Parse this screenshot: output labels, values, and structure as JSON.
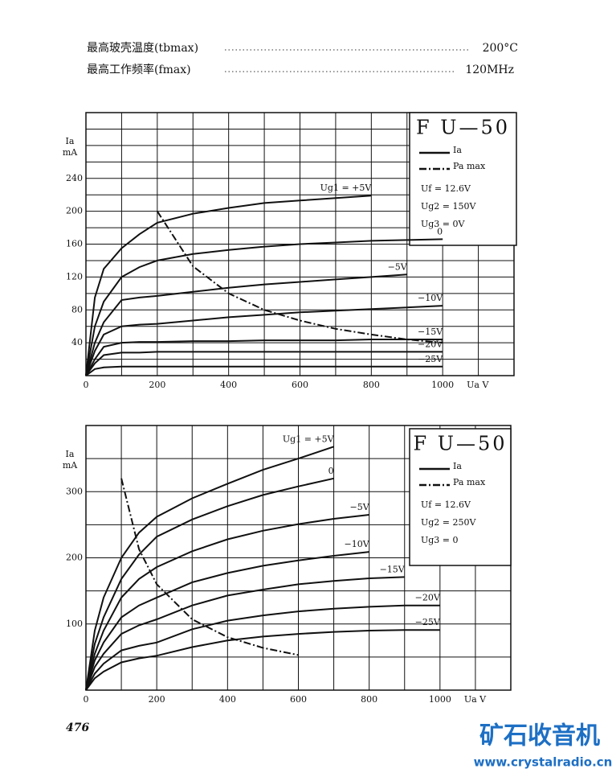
{
  "header": {
    "lines": [
      {
        "label": "最高玻壳温度(tbmax)",
        "value": "200°C"
      },
      {
        "label": "最高工作频率(fmax)",
        "value": "120MHz"
      }
    ]
  },
  "chart_data": [
    {
      "type": "line",
      "title": "F U—50",
      "y_label": [
        "Ia",
        "mA"
      ],
      "x_label": "Ua V",
      "legend": [
        {
          "label": "Ia",
          "style": "solid"
        },
        {
          "label": "Pa max",
          "style": "dashdot"
        }
      ],
      "conditions": [
        "Uf = 12.6V",
        "Ug2 = 150V",
        "Ug3 = 0V"
      ],
      "xlim": [
        0,
        1200
      ],
      "ylim": [
        0,
        320
      ],
      "xticks": [
        0,
        200,
        400,
        600,
        800,
        1000
      ],
      "yticks": [
        40,
        80,
        120,
        160,
        200,
        240
      ],
      "x_minor_ticks": [
        100,
        300,
        500,
        700,
        900,
        1100
      ],
      "y_minor_ticks": [
        20,
        60,
        100,
        140,
        180,
        220,
        260,
        280,
        300
      ],
      "grid": true,
      "x": [
        0,
        25,
        50,
        100,
        150,
        200,
        300,
        400,
        500,
        600,
        700,
        800,
        900,
        1000
      ],
      "series": [
        {
          "name": "Ug1 = +5V",
          "color": "#111111",
          "style": "solid",
          "values": [
            0,
            95,
            130,
            155,
            172,
            186,
            197,
            204,
            210,
            213,
            216,
            219,
            null,
            null
          ]
        },
        {
          "name": "0",
          "color": "#111111",
          "style": "solid",
          "values": [
            0,
            60,
            90,
            120,
            132,
            140,
            148,
            153,
            157,
            160,
            162,
            164,
            165,
            166
          ]
        },
        {
          "name": "−5V",
          "color": "#111111",
          "style": "solid",
          "values": [
            0,
            40,
            65,
            92,
            95,
            97,
            102,
            107,
            111,
            114,
            117,
            120,
            123,
            null
          ]
        },
        {
          "name": "−10V",
          "color": "#111111",
          "style": "solid",
          "values": [
            0,
            30,
            50,
            60,
            62,
            63,
            67,
            71,
            74,
            77,
            79,
            81,
            83,
            85
          ]
        },
        {
          "name": "−15V",
          "color": "#111111",
          "style": "solid",
          "values": [
            0,
            20,
            35,
            40,
            41,
            41,
            42,
            42,
            43,
            43,
            43,
            44,
            44,
            44
          ]
        },
        {
          "name": "−20V",
          "color": "#111111",
          "style": "solid",
          "values": [
            0,
            15,
            25,
            28,
            28,
            29,
            29,
            29,
            29,
            29,
            29,
            29,
            29,
            29
          ]
        },
        {
          "name": "−25V",
          "color": "#111111",
          "style": "solid",
          "values": [
            0,
            8,
            10,
            11,
            11,
            11,
            11,
            11,
            11,
            11,
            11,
            11,
            11,
            11
          ]
        },
        {
          "name": "Pa max",
          "color": "#111111",
          "style": "dashdot",
          "values": [
            null,
            null,
            null,
            null,
            null,
            200,
            133,
            100,
            80,
            67,
            57,
            50,
            44,
            40
          ]
        }
      ]
    },
    {
      "type": "line",
      "title": "F U—50",
      "y_label": [
        "Ia",
        "mA"
      ],
      "x_label": "Ua V",
      "legend": [
        {
          "label": "Ia",
          "style": "solid"
        },
        {
          "label": "Pa max",
          "style": "dashdot"
        }
      ],
      "conditions": [
        "Uf = 12.6V",
        "Ug2 = 250V",
        "Ug3 = 0"
      ],
      "xlim": [
        0,
        1200
      ],
      "ylim": [
        0,
        400
      ],
      "xticks": [
        0,
        200,
        400,
        600,
        800,
        1000
      ],
      "yticks": [
        100,
        200,
        300
      ],
      "x_minor_ticks": [
        100,
        300,
        500,
        700,
        900,
        1100
      ],
      "y_minor_ticks": [
        50,
        150,
        250,
        350
      ],
      "grid": true,
      "x": [
        0,
        25,
        50,
        100,
        150,
        200,
        300,
        400,
        500,
        600,
        700,
        800,
        900,
        1000
      ],
      "series": [
        {
          "name": "Ug1 = +5V",
          "color": "#111111",
          "style": "solid",
          "values": [
            0,
            90,
            140,
            200,
            238,
            262,
            290,
            312,
            333,
            350,
            368,
            null,
            null,
            null
          ]
        },
        {
          "name": "0",
          "color": "#111111",
          "style": "solid",
          "values": [
            0,
            70,
            110,
            168,
            205,
            232,
            258,
            278,
            295,
            308,
            320,
            null,
            null,
            null
          ]
        },
        {
          "name": "−5V",
          "color": "#111111",
          "style": "solid",
          "values": [
            0,
            55,
            90,
            140,
            168,
            186,
            210,
            228,
            241,
            251,
            259,
            265,
            null,
            null
          ]
        },
        {
          "name": "−10V",
          "color": "#111111",
          "style": "solid",
          "values": [
            0,
            45,
            72,
            110,
            128,
            140,
            163,
            177,
            188,
            196,
            203,
            209,
            null,
            null
          ]
        },
        {
          "name": "−15V",
          "color": "#111111",
          "style": "solid",
          "values": [
            0,
            35,
            55,
            85,
            98,
            107,
            128,
            143,
            152,
            160,
            165,
            169,
            171,
            null
          ]
        },
        {
          "name": "−20V",
          "color": "#111111",
          "style": "solid",
          "values": [
            0,
            25,
            40,
            60,
            67,
            72,
            92,
            105,
            113,
            119,
            123,
            126,
            128,
            128
          ]
        },
        {
          "name": "−25V",
          "color": "#111111",
          "style": "solid",
          "values": [
            0,
            18,
            28,
            42,
            48,
            52,
            65,
            75,
            81,
            85,
            88,
            90,
            91,
            91
          ]
        },
        {
          "name": "Pa max",
          "color": "#111111",
          "style": "dashdot",
          "values": [
            null,
            null,
            null,
            320,
            213,
            160,
            107,
            80,
            64,
            53,
            null,
            null,
            null,
            null
          ]
        }
      ]
    }
  ],
  "page_number": "476",
  "watermark": {
    "title": "矿石收音机",
    "url": "www.crystalradio.cn"
  }
}
